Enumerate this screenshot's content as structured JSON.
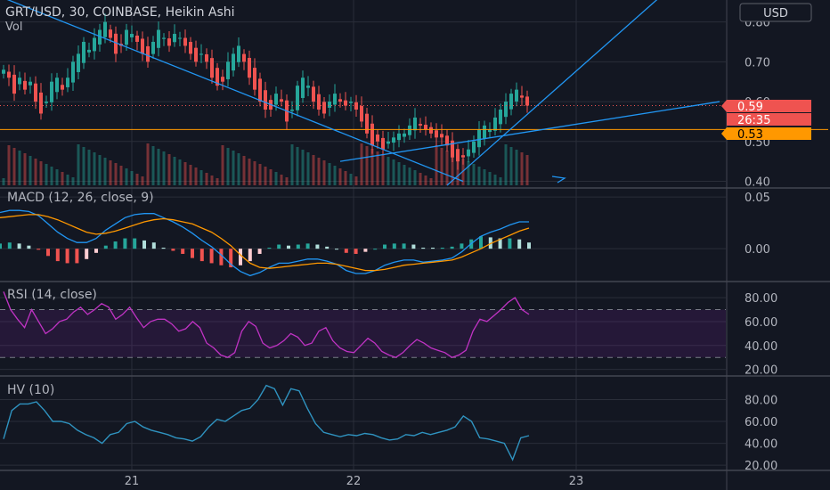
{
  "header": {
    "symbol_line": "GRT/USD, 30, COINBASE, Heikin Ashi",
    "vol_label": "Vol",
    "currency_button": "USD"
  },
  "colors": {
    "background": "#131722",
    "grid": "#2a2e39",
    "up": "#26a69a",
    "down": "#ef5350",
    "trendline": "#2196f3",
    "price_line_orange": "#ff9800",
    "macd_line": "#2196f3",
    "signal_line": "#ff9800",
    "rsi_line": "#c033c4",
    "rsi_band": "#3b1f4a",
    "hv_line": "#2f93c0",
    "axis_text": "#b2b5be"
  },
  "x_axis": {
    "ticks": [
      "21",
      "22",
      "23"
    ]
  },
  "chart_data": [
    {
      "type": "candlestick",
      "title": "GRT/USD, 30, COINBASE, Heikin Ashi",
      "y_ticks": [
        "0.80",
        "0.70",
        "0.60",
        "0.50",
        "0.40"
      ],
      "ylim": [
        0.39,
        0.855
      ],
      "price_labels": [
        {
          "text": "0.59",
          "value": 0.59,
          "color": "#ef5350"
        },
        {
          "text": "26:35",
          "color": "#ef5350"
        },
        {
          "text": "0.53",
          "value": 0.53,
          "color": "#ff9800"
        }
      ],
      "orange_line_value": 0.53,
      "candles_close": [
        0.68,
        0.66,
        0.62,
        0.66,
        0.63,
        0.65,
        0.6,
        0.57,
        0.6,
        0.65,
        0.66,
        0.63,
        0.66,
        0.7,
        0.72,
        0.75,
        0.73,
        0.76,
        0.78,
        0.8,
        0.76,
        0.72,
        0.74,
        0.78,
        0.77,
        0.75,
        0.72,
        0.7,
        0.75,
        0.78,
        0.76,
        0.74,
        0.77,
        0.76,
        0.74,
        0.72,
        0.7,
        0.72,
        0.7,
        0.66,
        0.64,
        0.65,
        0.7,
        0.72,
        0.74,
        0.7,
        0.66,
        0.63,
        0.6,
        0.58,
        0.58,
        0.62,
        0.6,
        0.55,
        0.58,
        0.64,
        0.66,
        0.64,
        0.6,
        0.58,
        0.57,
        0.6,
        0.62,
        0.6,
        0.59,
        0.6,
        0.58,
        0.55,
        0.52,
        0.49,
        0.5,
        0.48,
        0.5,
        0.51,
        0.52,
        0.52,
        0.54,
        0.56,
        0.54,
        0.53,
        0.52,
        0.51,
        0.51,
        0.49,
        0.46,
        0.45,
        0.46,
        0.48,
        0.5,
        0.53,
        0.54,
        0.53,
        0.56,
        0.58,
        0.6,
        0.62,
        0.63,
        0.61,
        0.59
      ],
      "trendlines": [
        {
          "from": [
            0,
            0.86
          ],
          "to": [
            86,
            0.4
          ]
        },
        {
          "from": [
            63,
            0.45
          ],
          "to": [
            134,
            0.6
          ]
        },
        {
          "from": [
            83,
            0.39
          ],
          "to": [
            126,
            0.9
          ]
        }
      ]
    },
    {
      "type": "line",
      "title": "MACD (12, 26, close, 9)",
      "y_ticks": [
        "0.05",
        "0.00"
      ],
      "ylim": [
        -0.03,
        0.057
      ],
      "series": [
        {
          "name": "MACD",
          "values": [
            0.035,
            0.037,
            0.037,
            0.036,
            0.032,
            0.024,
            0.016,
            0.01,
            0.006,
            0.006,
            0.01,
            0.018,
            0.024,
            0.03,
            0.033,
            0.034,
            0.034,
            0.03,
            0.026,
            0.021,
            0.015,
            0.008,
            0.002,
            -0.006,
            -0.015,
            -0.022,
            -0.026,
            -0.023,
            -0.018,
            -0.014,
            -0.014,
            -0.012,
            -0.01,
            -0.01,
            -0.012,
            -0.015,
            -0.021,
            -0.024,
            -0.024,
            -0.021,
            -0.016,
            -0.013,
            -0.011,
            -0.011,
            -0.013,
            -0.012,
            -0.011,
            -0.009,
            -0.003,
            0.005,
            0.012,
            0.016,
            0.019,
            0.023,
            0.026,
            0.026
          ]
        },
        {
          "name": "Signal",
          "values": [
            0.03,
            0.031,
            0.032,
            0.033,
            0.033,
            0.031,
            0.028,
            0.024,
            0.02,
            0.016,
            0.014,
            0.015,
            0.017,
            0.02,
            0.023,
            0.026,
            0.028,
            0.029,
            0.028,
            0.026,
            0.024,
            0.02,
            0.016,
            0.01,
            0.003,
            -0.006,
            -0.014,
            -0.018,
            -0.019,
            -0.018,
            -0.017,
            -0.016,
            -0.015,
            -0.014,
            -0.014,
            -0.015,
            -0.017,
            -0.019,
            -0.021,
            -0.021,
            -0.02,
            -0.018,
            -0.016,
            -0.015,
            -0.014,
            -0.013,
            -0.012,
            -0.011,
            -0.008,
            -0.004,
            0.0,
            0.005,
            0.009,
            0.013,
            0.017,
            0.02
          ]
        }
      ]
    },
    {
      "type": "line",
      "title": "RSI (14, close)",
      "y_ticks": [
        "80.00",
        "60.00",
        "40.00",
        "20.00"
      ],
      "ylim": [
        16,
        92
      ],
      "bands": [
        70,
        30
      ],
      "values": [
        85,
        70,
        62,
        55,
        70,
        60,
        50,
        54,
        60,
        62,
        68,
        72,
        66,
        70,
        75,
        72,
        62,
        66,
        72,
        63,
        55,
        60,
        62,
        62,
        58,
        52,
        54,
        60,
        55,
        42,
        38,
        32,
        30,
        34,
        52,
        60,
        56,
        42,
        38,
        40,
        44,
        50,
        47,
        40,
        42,
        52,
        55,
        44,
        38,
        35,
        34,
        40,
        46,
        42,
        35,
        32,
        30,
        34,
        40,
        45,
        42,
        38,
        36,
        34,
        30,
        32,
        36,
        52,
        62,
        60,
        65,
        70,
        76,
        80,
        70,
        66
      ]
    },
    {
      "type": "line",
      "title": "HV (10)",
      "y_ticks": [
        "80.00",
        "60.00",
        "40.00",
        "20.00"
      ],
      "ylim": [
        16,
        100
      ],
      "values": [
        44,
        70,
        76,
        76,
        78,
        70,
        60,
        60,
        58,
        52,
        48,
        45,
        40,
        48,
        50,
        58,
        60,
        55,
        52,
        50,
        48,
        45,
        44,
        42,
        46,
        55,
        62,
        60,
        65,
        70,
        72,
        80,
        93,
        90,
        75,
        90,
        88,
        72,
        58,
        50,
        48,
        46,
        48,
        47,
        49,
        48,
        45,
        43,
        44,
        48,
        47,
        50,
        48,
        50,
        52,
        55,
        65,
        60,
        45,
        44,
        42,
        40,
        25,
        45,
        47
      ]
    }
  ]
}
